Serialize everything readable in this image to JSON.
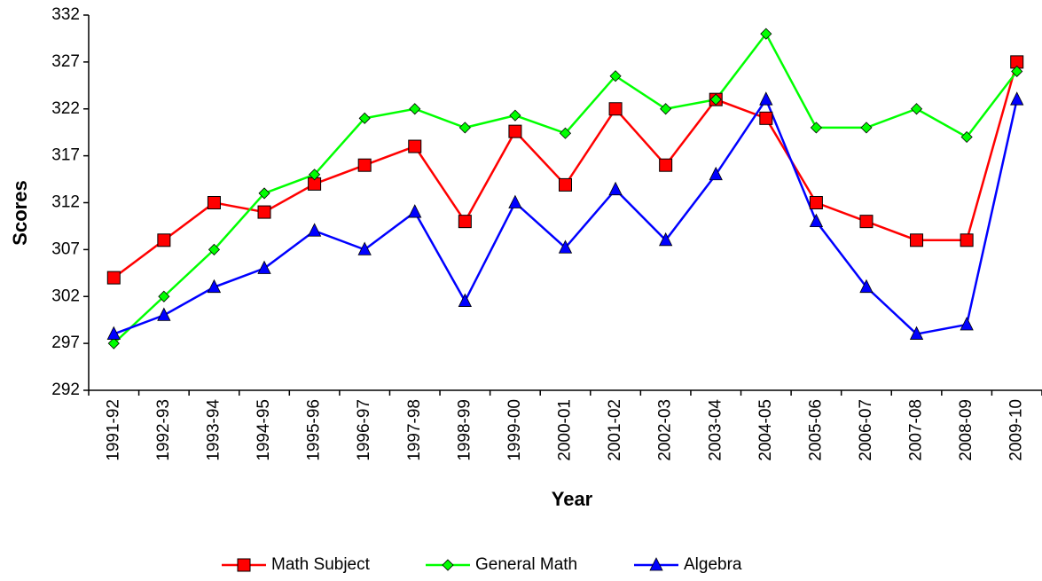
{
  "chart_data": {
    "type": "line",
    "x_label": "Year",
    "y_label": "Scores",
    "categories": [
      "1991-92",
      "1992-93",
      "1993-94",
      "1994-95",
      "1995-96",
      "1996-97",
      "1997-98",
      "1998-99",
      "1999-00",
      "2000-01",
      "2001-02",
      "2002-03",
      "2003-04",
      "2004-05",
      "2005-06",
      "2006-07",
      "2007-08",
      "2008-09",
      "2009-10"
    ],
    "series": [
      {
        "name": "Math Subject",
        "color": "#ff0000",
        "marker": "square",
        "values": [
          304,
          308,
          312,
          311,
          314,
          316,
          318,
          310,
          319.6,
          313.9,
          322,
          316,
          323,
          321,
          312,
          310,
          308,
          308,
          327
        ]
      },
      {
        "name": "General Math",
        "color": "#00ff00",
        "marker": "diamond",
        "values": [
          297,
          302,
          307,
          313,
          315,
          321,
          322,
          320,
          321.3,
          319.4,
          325.5,
          322,
          323,
          330,
          320,
          320,
          322,
          319,
          326
        ]
      },
      {
        "name": "Algebra",
        "color": "#0000ff",
        "marker": "triangle",
        "values": [
          298,
          300,
          303,
          305,
          309,
          307,
          311,
          301.5,
          312,
          307.2,
          313.4,
          308,
          315,
          323,
          310,
          303,
          298,
          299,
          323
        ]
      }
    ],
    "ylim": [
      292,
      332
    ],
    "yticks": [
      292,
      297,
      302,
      307,
      312,
      317,
      322,
      327,
      332
    ],
    "legend": "bottom"
  }
}
